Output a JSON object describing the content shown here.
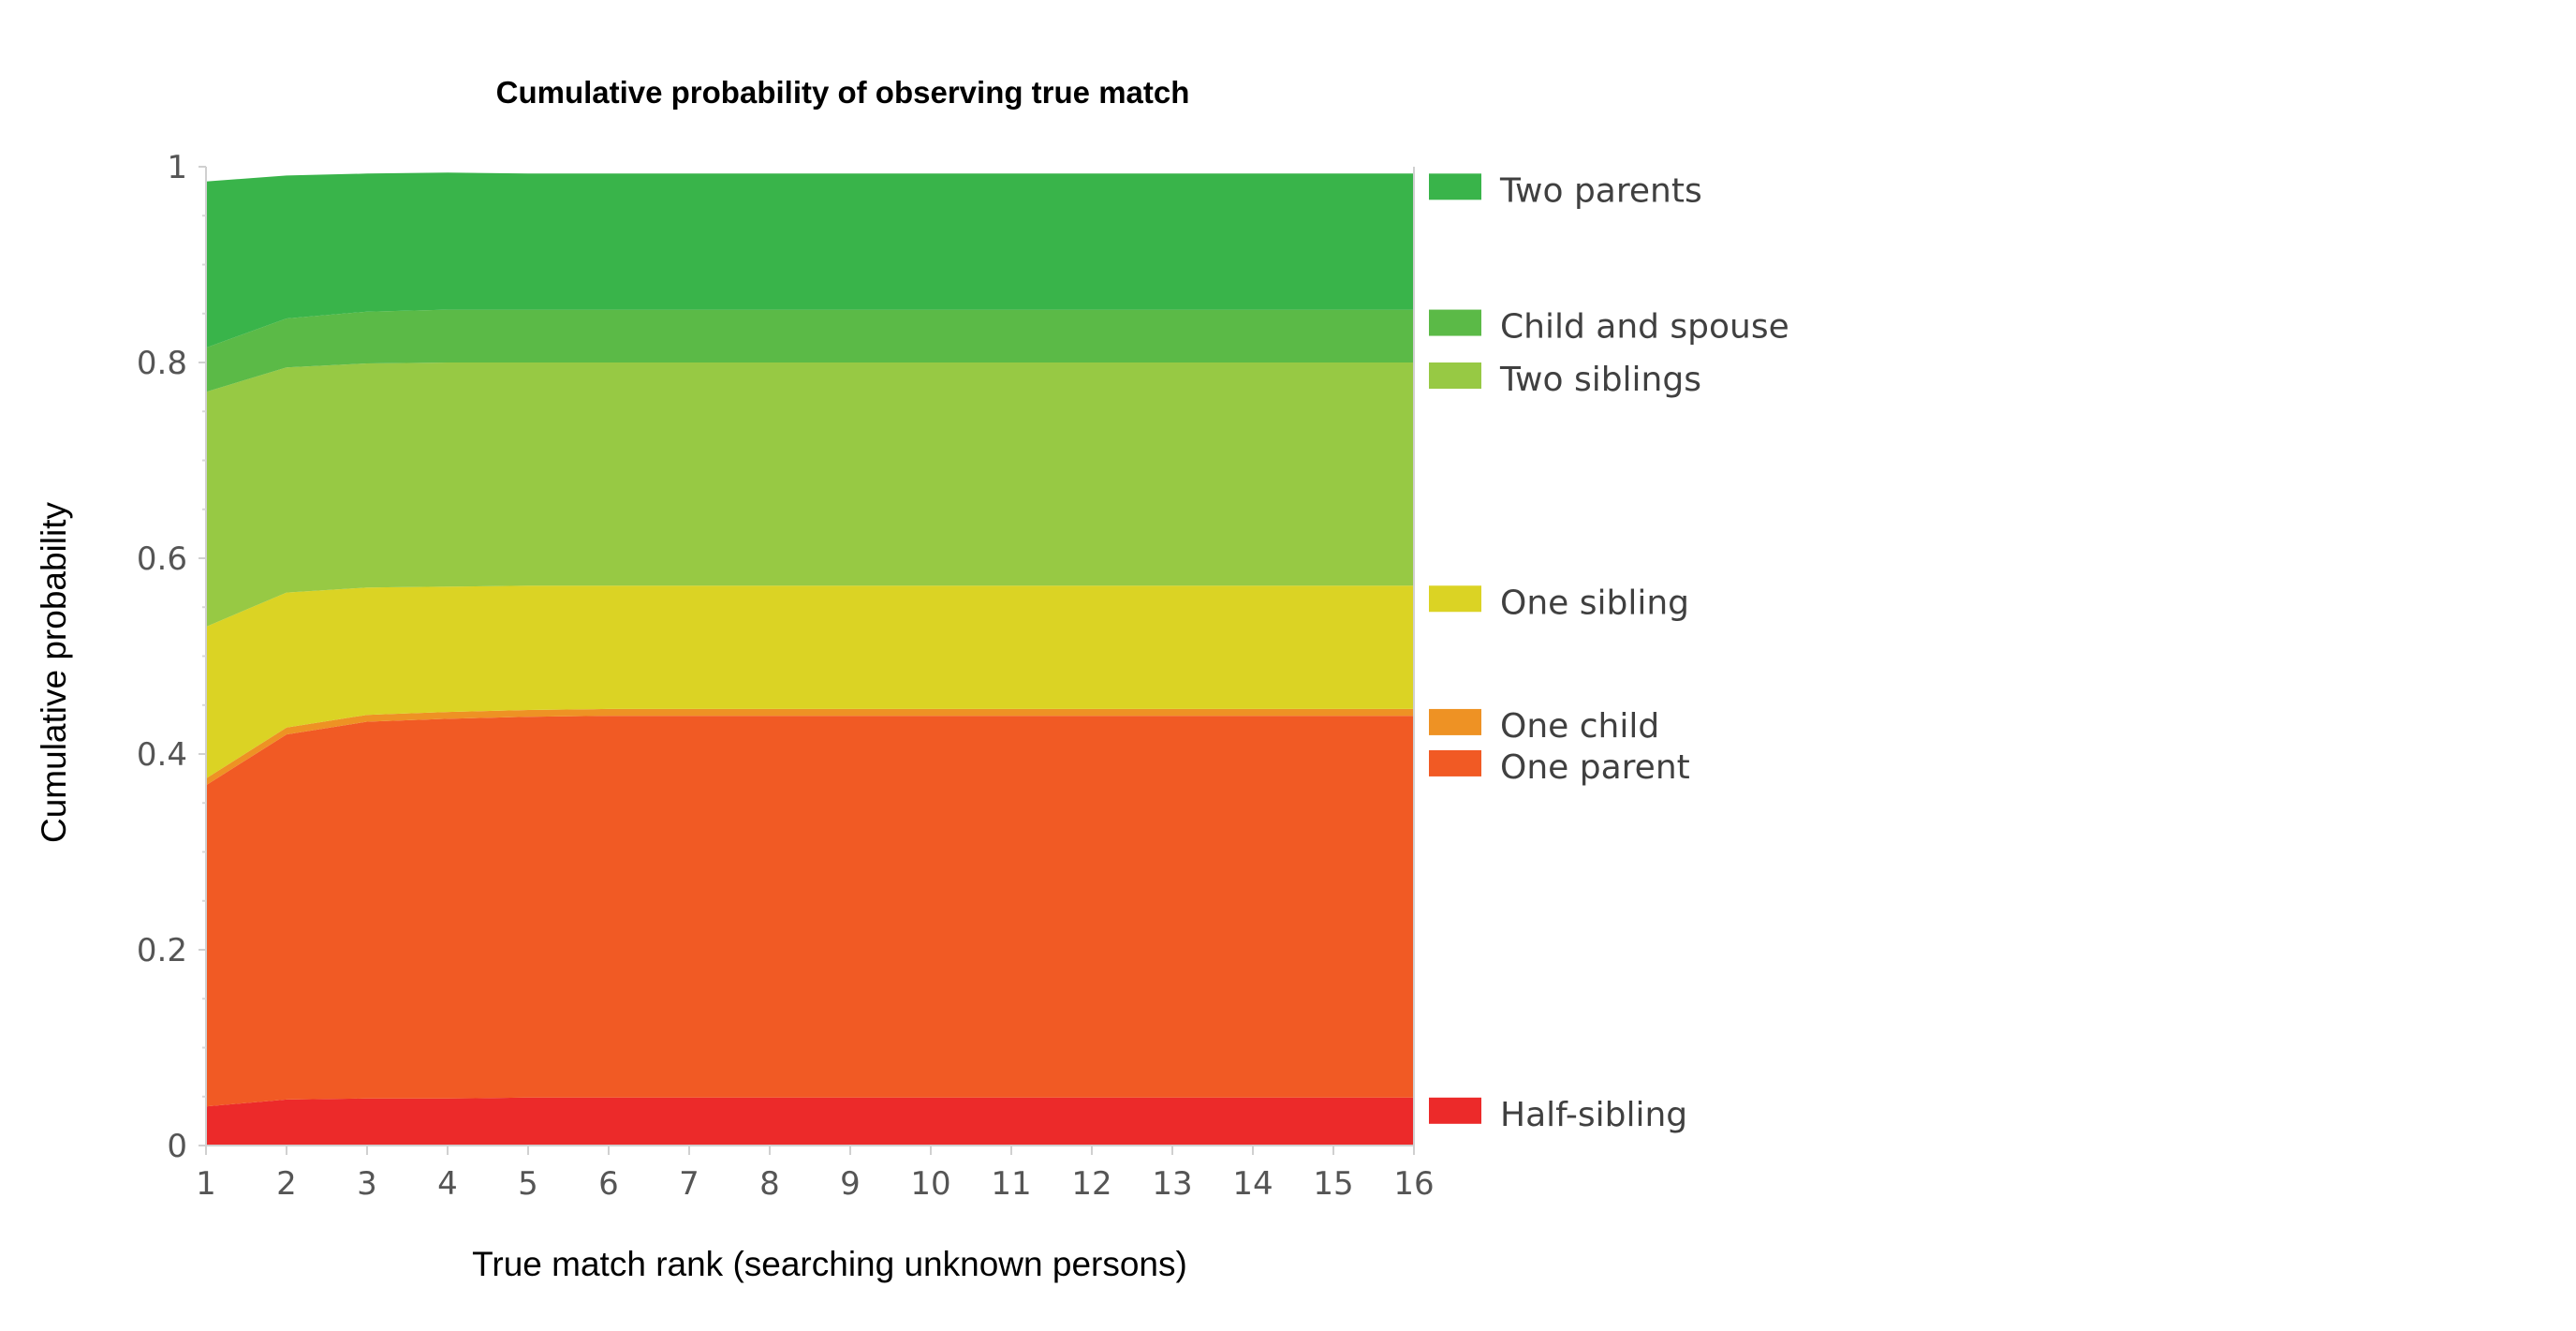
{
  "chart_data": {
    "type": "area",
    "stacked": true,
    "title": "Cumulative probability of observing true match",
    "xlabel": "True match rank (searching unknown persons)",
    "ylabel": "Cumulative probability",
    "x": [
      1,
      2,
      3,
      4,
      5,
      6,
      7,
      8,
      9,
      10,
      11,
      12,
      13,
      14,
      15,
      16
    ],
    "xlim": [
      1,
      16
    ],
    "ylim": [
      0,
      1
    ],
    "yticks": [
      0,
      0.2,
      0.4,
      0.6,
      0.8,
      1
    ],
    "ytick_labels": [
      "0",
      "0.2",
      "0.4",
      "0.6",
      "0.8",
      "1"
    ],
    "grid": false,
    "legend_position": "right",
    "series": [
      {
        "name": "Half-sibling",
        "color": "#EC2A2A",
        "values": [
          0.04,
          0.047,
          0.048,
          0.048,
          0.049,
          0.049,
          0.049,
          0.049,
          0.049,
          0.049,
          0.049,
          0.049,
          0.049,
          0.049,
          0.049,
          0.049
        ]
      },
      {
        "name": "One parent",
        "color": "#F15A24",
        "values": [
          0.328,
          0.373,
          0.385,
          0.388,
          0.389,
          0.39,
          0.39,
          0.39,
          0.39,
          0.39,
          0.39,
          0.39,
          0.39,
          0.39,
          0.39,
          0.39
        ]
      },
      {
        "name": "One child",
        "color": "#EE9224",
        "values": [
          0.007,
          0.007,
          0.007,
          0.007,
          0.007,
          0.007,
          0.007,
          0.007,
          0.007,
          0.007,
          0.007,
          0.007,
          0.007,
          0.007,
          0.007,
          0.007
        ]
      },
      {
        "name": "One sibling",
        "color": "#DBD324",
        "values": [
          0.155,
          0.138,
          0.13,
          0.128,
          0.127,
          0.126,
          0.126,
          0.126,
          0.126,
          0.126,
          0.126,
          0.126,
          0.126,
          0.126,
          0.126,
          0.126
        ]
      },
      {
        "name": "Two siblings",
        "color": "#97C944",
        "values": [
          0.24,
          0.23,
          0.229,
          0.229,
          0.228,
          0.228,
          0.228,
          0.228,
          0.228,
          0.228,
          0.228,
          0.228,
          0.228,
          0.228,
          0.228,
          0.228
        ]
      },
      {
        "name": "Child and spouse",
        "color": "#5BBA47",
        "values": [
          0.045,
          0.05,
          0.053,
          0.054,
          0.054,
          0.054,
          0.054,
          0.054,
          0.054,
          0.054,
          0.054,
          0.054,
          0.054,
          0.054,
          0.054,
          0.054
        ]
      },
      {
        "name": "Two parents",
        "color": "#39B44A",
        "values": [
          0.17,
          0.146,
          0.141,
          0.14,
          0.139,
          0.139,
          0.139,
          0.139,
          0.139,
          0.139,
          0.139,
          0.139,
          0.139,
          0.139,
          0.139,
          0.139
        ]
      }
    ]
  }
}
